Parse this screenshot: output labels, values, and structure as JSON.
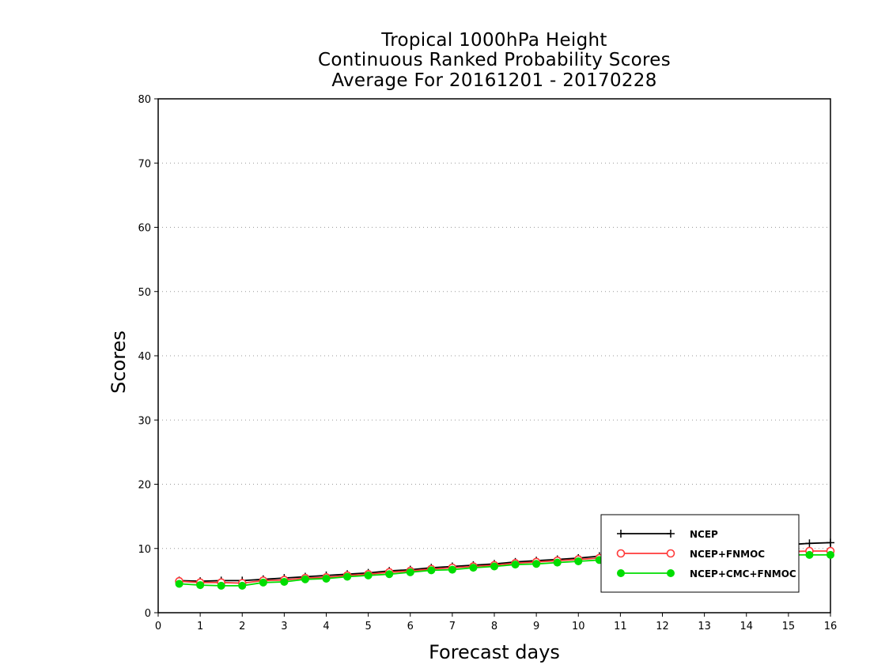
{
  "chart_data": {
    "type": "line",
    "title_lines": [
      "Tropical 1000hPa Height",
      "Continuous Ranked Probability Scores",
      "Average For 20161201 - 20170228"
    ],
    "xlabel": "Forecast days",
    "ylabel": "Scores",
    "xlim": [
      0,
      16
    ],
    "ylim": [
      0,
      80
    ],
    "x_ticks": [
      "0",
      "1",
      "2",
      "3",
      "4",
      "5",
      "6",
      "7",
      "8",
      "9",
      "10",
      "11",
      "12",
      "13",
      "14",
      "15",
      "16"
    ],
    "y_ticks": [
      "0",
      "10",
      "20",
      "30",
      "40",
      "50",
      "60",
      "70",
      "80"
    ],
    "grid": "horizontal dotted",
    "legend_position": "bottom-right",
    "x": [
      0.5,
      1,
      1.5,
      2,
      2.5,
      3,
      3.5,
      4,
      4.5,
      5,
      5.5,
      6,
      6.5,
      7,
      7.5,
      8,
      8.5,
      9,
      9.5,
      10,
      10.5,
      11,
      11.5,
      12,
      12.5,
      13,
      13.5,
      14,
      14.5,
      15,
      15.5,
      16
    ],
    "series": [
      {
        "name": "NCEP",
        "color": "#000000",
        "marker": "plus",
        "values": [
          5.0,
          4.9,
          5.0,
          5.0,
          5.2,
          5.4,
          5.6,
          5.8,
          6.0,
          6.2,
          6.5,
          6.7,
          7.0,
          7.2,
          7.4,
          7.6,
          7.9,
          8.1,
          8.3,
          8.5,
          8.8,
          9.0,
          9.2,
          9.4,
          9.6,
          9.8,
          10.0,
          10.2,
          10.4,
          10.6,
          10.8,
          10.9
        ]
      },
      {
        "name": "NCEP+FNMOC",
        "color": "#ff3a3a",
        "marker": "open-circle",
        "values": [
          4.9,
          4.7,
          4.7,
          4.6,
          5.0,
          5.1,
          5.4,
          5.5,
          5.8,
          6.0,
          6.3,
          6.5,
          6.8,
          7.0,
          7.2,
          7.4,
          7.7,
          7.9,
          8.1,
          8.3,
          8.5,
          8.7,
          8.8,
          8.9,
          9.0,
          9.1,
          9.2,
          9.3,
          9.4,
          9.5,
          9.6,
          9.6
        ]
      },
      {
        "name": "NCEP+CMC+FNMOC",
        "color": "#00dd00",
        "marker": "filled-circle",
        "values": [
          4.5,
          4.3,
          4.2,
          4.2,
          4.7,
          4.8,
          5.2,
          5.3,
          5.6,
          5.8,
          6.0,
          6.3,
          6.6,
          6.7,
          7.0,
          7.2,
          7.5,
          7.6,
          7.8,
          8.0,
          8.2,
          8.3,
          8.4,
          8.5,
          8.6,
          8.7,
          8.8,
          8.8,
          8.9,
          9.0,
          9.0,
          9.0
        ]
      }
    ]
  }
}
